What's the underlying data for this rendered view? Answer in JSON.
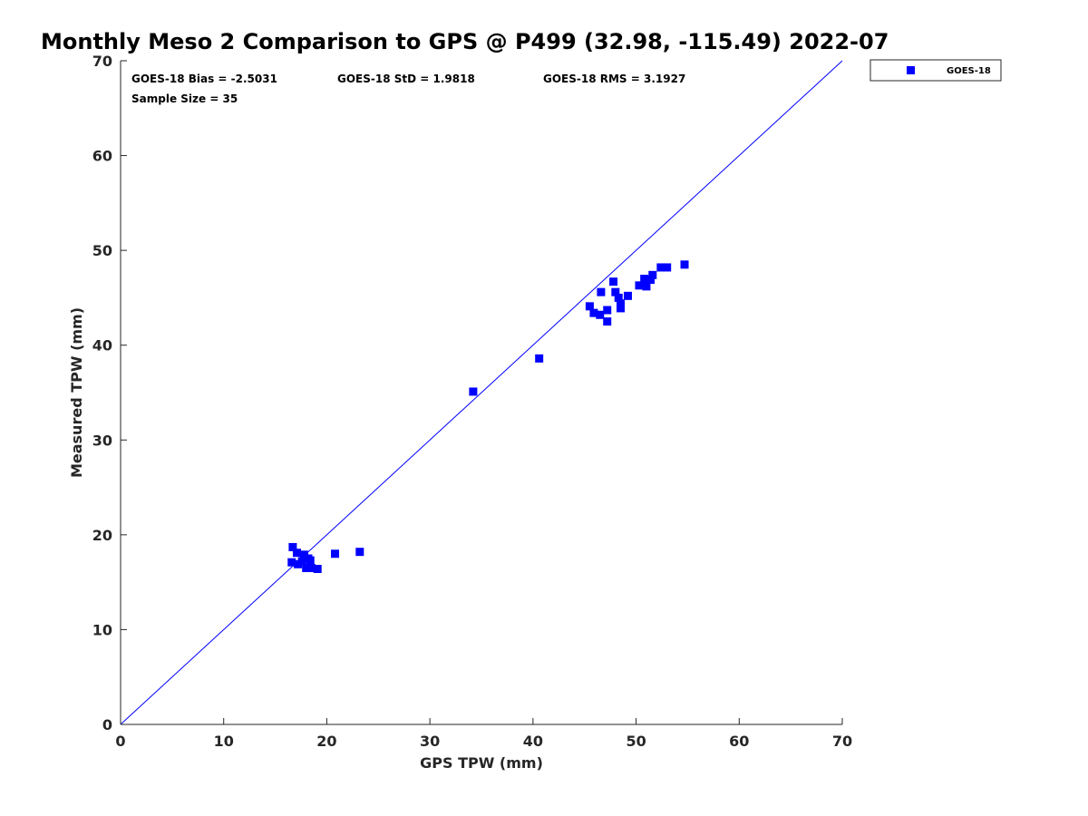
{
  "chart_data": {
    "type": "scatter",
    "title": "Monthly Meso 2 Comparison to GPS @ P499 (32.98, -115.49) 2022-07",
    "xlabel": "GPS TPW (mm)",
    "ylabel": "Measured TPW (mm)",
    "xlim": [
      0,
      70
    ],
    "ylim": [
      0,
      70
    ],
    "xticks": [
      0,
      10,
      20,
      30,
      40,
      50,
      60,
      70
    ],
    "yticks": [
      0,
      10,
      20,
      30,
      40,
      50,
      60,
      70
    ],
    "grid": false,
    "legend": {
      "placement": "outside-top-right",
      "entries": [
        "GOES-18"
      ]
    },
    "annotations": {
      "bias": "GOES-18 Bias = -2.5031",
      "std": "GOES-18 StD = 1.9818",
      "rms": "GOES-18 RMS = 3.1927",
      "sample": "Sample Size = 35"
    },
    "reference_line": {
      "from": [
        0,
        0
      ],
      "to": [
        70,
        70
      ],
      "color": "#0000ff"
    },
    "series": [
      {
        "name": "GOES-18",
        "color": "#0000ff",
        "marker": "square",
        "points": [
          [
            16.7,
            18.7
          ],
          [
            17.1,
            18.1
          ],
          [
            16.6,
            17.1
          ],
          [
            17.2,
            16.9
          ],
          [
            17.8,
            17.9
          ],
          [
            17.6,
            17.2
          ],
          [
            18.2,
            17.5
          ],
          [
            18.4,
            17.3
          ],
          [
            18.0,
            16.5
          ],
          [
            18.5,
            16.5
          ],
          [
            19.1,
            16.4
          ],
          [
            20.8,
            18.0
          ],
          [
            23.2,
            18.2
          ],
          [
            34.2,
            35.1
          ],
          [
            40.6,
            38.6
          ],
          [
            45.5,
            44.1
          ],
          [
            45.9,
            43.4
          ],
          [
            46.5,
            43.2
          ],
          [
            46.6,
            45.6
          ],
          [
            47.2,
            43.7
          ],
          [
            47.2,
            42.5
          ],
          [
            47.8,
            46.7
          ],
          [
            48.0,
            45.6
          ],
          [
            48.3,
            45.0
          ],
          [
            48.5,
            44.4
          ],
          [
            48.5,
            43.9
          ],
          [
            49.2,
            45.2
          ],
          [
            50.3,
            46.3
          ],
          [
            50.8,
            47.0
          ],
          [
            51.0,
            46.2
          ],
          [
            51.4,
            46.9
          ],
          [
            51.6,
            47.4
          ],
          [
            52.4,
            48.2
          ],
          [
            53.0,
            48.2
          ],
          [
            54.7,
            48.5
          ]
        ]
      }
    ]
  }
}
